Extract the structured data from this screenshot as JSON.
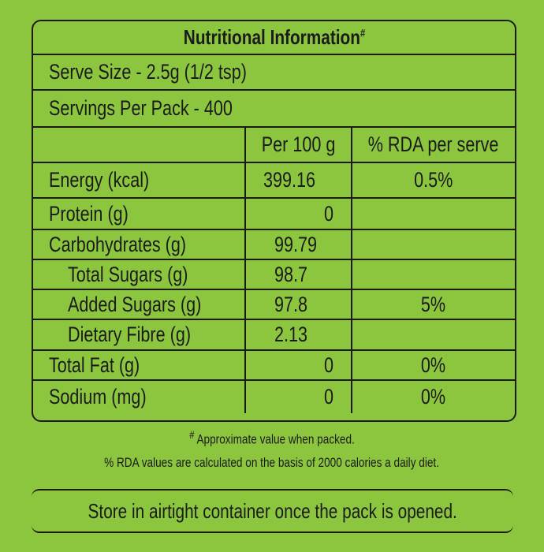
{
  "title": "Nutritional Information",
  "title_mark": "#",
  "serve_size": "Serve Size - 2.5g (1/2 tsp)",
  "servings": "Servings Per Pack - 400",
  "table": {
    "header": [
      "Per 100 g",
      "% RDA per serve"
    ],
    "rows": [
      [
        "Energy (kcal)",
        "399.16",
        "0.5%"
      ],
      [
        "Protein (g)",
        "0"
      ],
      [
        "Carbohydrates (g)",
        "99.79"
      ],
      [
        "Total Sugars (g)",
        "98.7"
      ],
      [
        "Added Sugars (g)",
        "97.8",
        "5%"
      ],
      [
        "Dietary Fibre (g)",
        "2.13"
      ],
      [
        "Total Fat (g)",
        "0",
        "0%"
      ],
      [
        "Sodium (mg)",
        "0",
        "0%"
      ]
    ]
  },
  "footnotes": {
    "mark": "#",
    "note": "Approximate value when packed.",
    "rda": "% RDA values are calculated on the basis of 2000 calories a daily diet."
  },
  "storage": "Store in airtight container once the pack is opened."
}
